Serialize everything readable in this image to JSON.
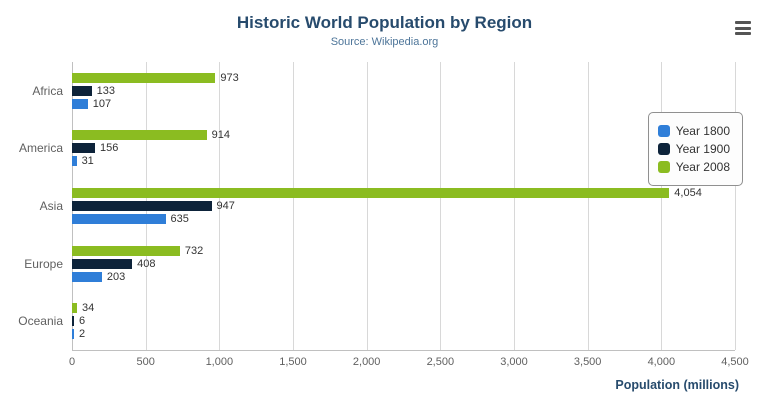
{
  "title": "Historic World Population by Region",
  "subtitle": "Source: Wikipedia.org",
  "menu": {
    "icon": "hamburger-icon"
  },
  "colors": {
    "title": "#274b6d",
    "subtitle": "#4d7599",
    "gridline": "#d8d8d8",
    "axis_line": "#c0c0c0",
    "series_1800": "#2f7ed8",
    "series_1900": "#0d233a",
    "series_2008": "#8bbc21"
  },
  "chart_data": {
    "type": "bar",
    "orientation": "horizontal",
    "title": "Historic World Population by Region",
    "subtitle": "Source: Wikipedia.org",
    "categories": [
      "Africa",
      "America",
      "Asia",
      "Europe",
      "Oceania"
    ],
    "series": [
      {
        "name": "Year 1800",
        "color": "#2f7ed8",
        "values": [
          107,
          31,
          635,
          203,
          2
        ]
      },
      {
        "name": "Year 1900",
        "color": "#0d233a",
        "values": [
          133,
          156,
          947,
          408,
          6
        ]
      },
      {
        "name": "Year 2008",
        "color": "#8bbc21",
        "values": [
          973,
          914,
          4054,
          732,
          34
        ]
      }
    ],
    "bar_order_top_to_bottom": [
      "Year 2008",
      "Year 1900",
      "Year 1800"
    ],
    "xlabel": "Population (millions)",
    "ylabel": "",
    "xlim": [
      0,
      4500
    ],
    "x_ticks": [
      "0",
      "500",
      "1,000",
      "1,500",
      "2,000",
      "2,500",
      "3,000",
      "3,500",
      "4,000",
      "4,500"
    ],
    "grid": true,
    "legend_position": "right",
    "data_labels": true
  }
}
